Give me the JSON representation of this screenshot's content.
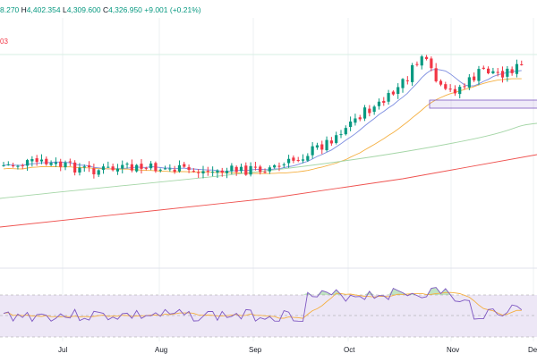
{
  "legend": {
    "open_fragment": "8.270",
    "high_label": "H",
    "high": "4,402.354",
    "low_label": "L",
    "low": "4,309.600",
    "close_label": "C",
    "close": "4,326.950",
    "change": "+9.001 (+0.21%)"
  },
  "side_label": "03",
  "x_axis_labels": [
    "Jul",
    "Aug",
    "Sep",
    "Oct",
    "Nov",
    "De"
  ],
  "colors": {
    "up": "#089981",
    "down": "#f23645",
    "sma_fast": "#7b8ce0",
    "sma_mid": "#f5b042",
    "sma_slow": "#a5d6a7",
    "sma_long": "#ef5350",
    "rsi_line": "#7e57c2",
    "rsi_ma": "#f5b042",
    "rsi_band": "#ede7f6",
    "zone": "#7e57c2"
  },
  "chart_data": {
    "type": "candlestick",
    "price_start": 4050,
    "candle_count": 110,
    "indicators": [
      "SMA fast",
      "SMA mid",
      "SMA slow",
      "SMA long",
      "RSI",
      "RSI MA"
    ],
    "rsi_levels": [
      70,
      50,
      30
    ]
  }
}
